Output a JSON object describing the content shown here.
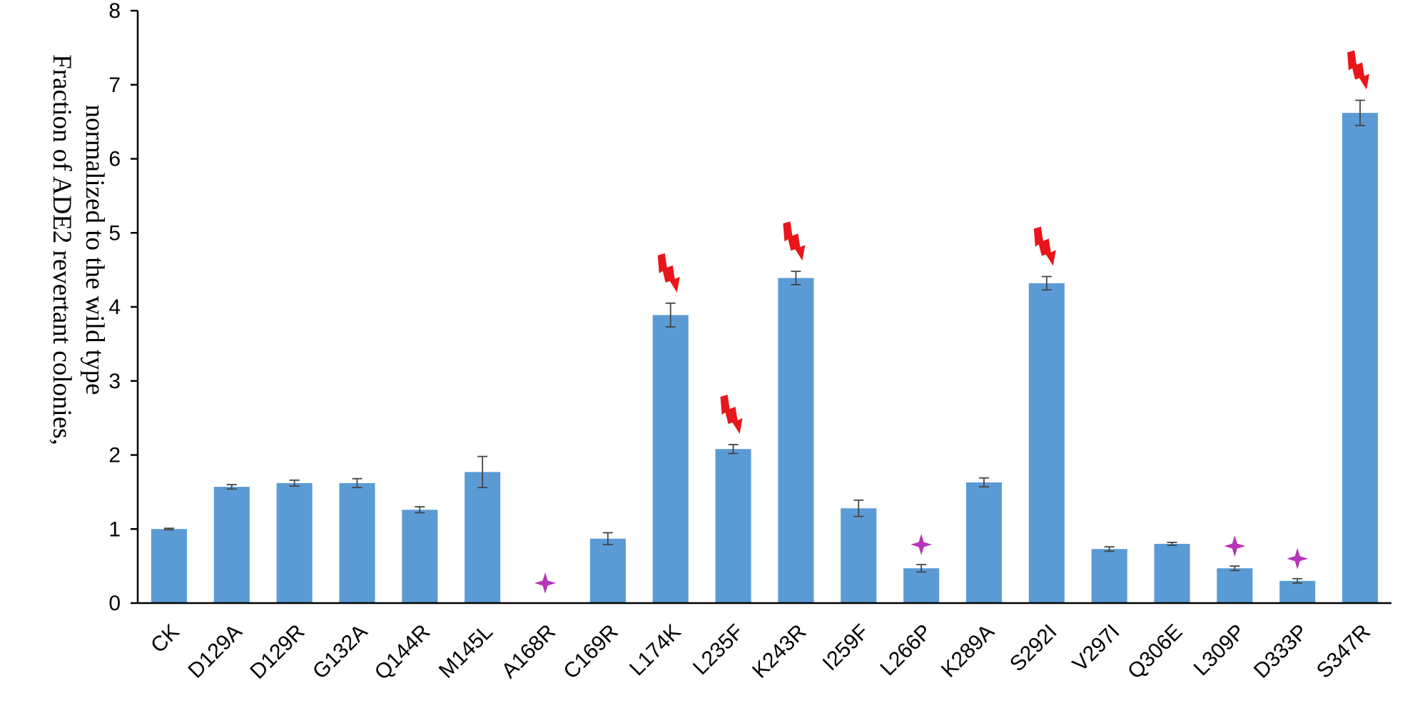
{
  "chart_data": {
    "type": "bar",
    "ylabel_lines": [
      "Fraction of ADE2 revertant colonies,",
      "normalized to the wild type"
    ],
    "ylim": [
      0,
      8
    ],
    "yticks": [
      0,
      1,
      2,
      3,
      4,
      5,
      6,
      7,
      8
    ],
    "grid": false,
    "bar_color": "#5b9bd5",
    "categories": [
      "CK",
      "D129A",
      "D129R",
      "G132A",
      "Q144R",
      "M145L",
      "A168R",
      "C169R",
      "L174K",
      "L235F",
      "K243R",
      "I259F",
      "L266P",
      "K289A",
      "S292I",
      "V297I",
      "Q306E",
      "L309P",
      "D333P",
      "S347R"
    ],
    "values": [
      1.0,
      1.57,
      1.62,
      1.62,
      1.26,
      1.77,
      0,
      0.87,
      3.89,
      2.08,
      4.39,
      1.28,
      0.47,
      1.63,
      4.32,
      0.73,
      0.8,
      0.47,
      0.3,
      6.62
    ],
    "errors": [
      0.01,
      0.03,
      0.04,
      0.06,
      0.04,
      0.21,
      0,
      0.08,
      0.16,
      0.06,
      0.09,
      0.11,
      0.05,
      0.06,
      0.09,
      0.03,
      0.02,
      0.03,
      0.03,
      0.17
    ],
    "annotations": [
      {
        "category": "L174K",
        "marker": "lightning",
        "color": "#e8161b"
      },
      {
        "category": "L235F",
        "marker": "lightning",
        "color": "#e8161b"
      },
      {
        "category": "K243R",
        "marker": "lightning",
        "color": "#e8161b"
      },
      {
        "category": "S292I",
        "marker": "lightning",
        "color": "#e8161b"
      },
      {
        "category": "S347R",
        "marker": "lightning",
        "color": "#e8161b"
      },
      {
        "category": "A168R",
        "marker": "star",
        "color": "#b535b6"
      },
      {
        "category": "L266P",
        "marker": "star",
        "color": "#b535b6"
      },
      {
        "category": "L309P",
        "marker": "star",
        "color": "#b535b6"
      },
      {
        "category": "D333P",
        "marker": "star",
        "color": "#b535b6"
      }
    ]
  }
}
